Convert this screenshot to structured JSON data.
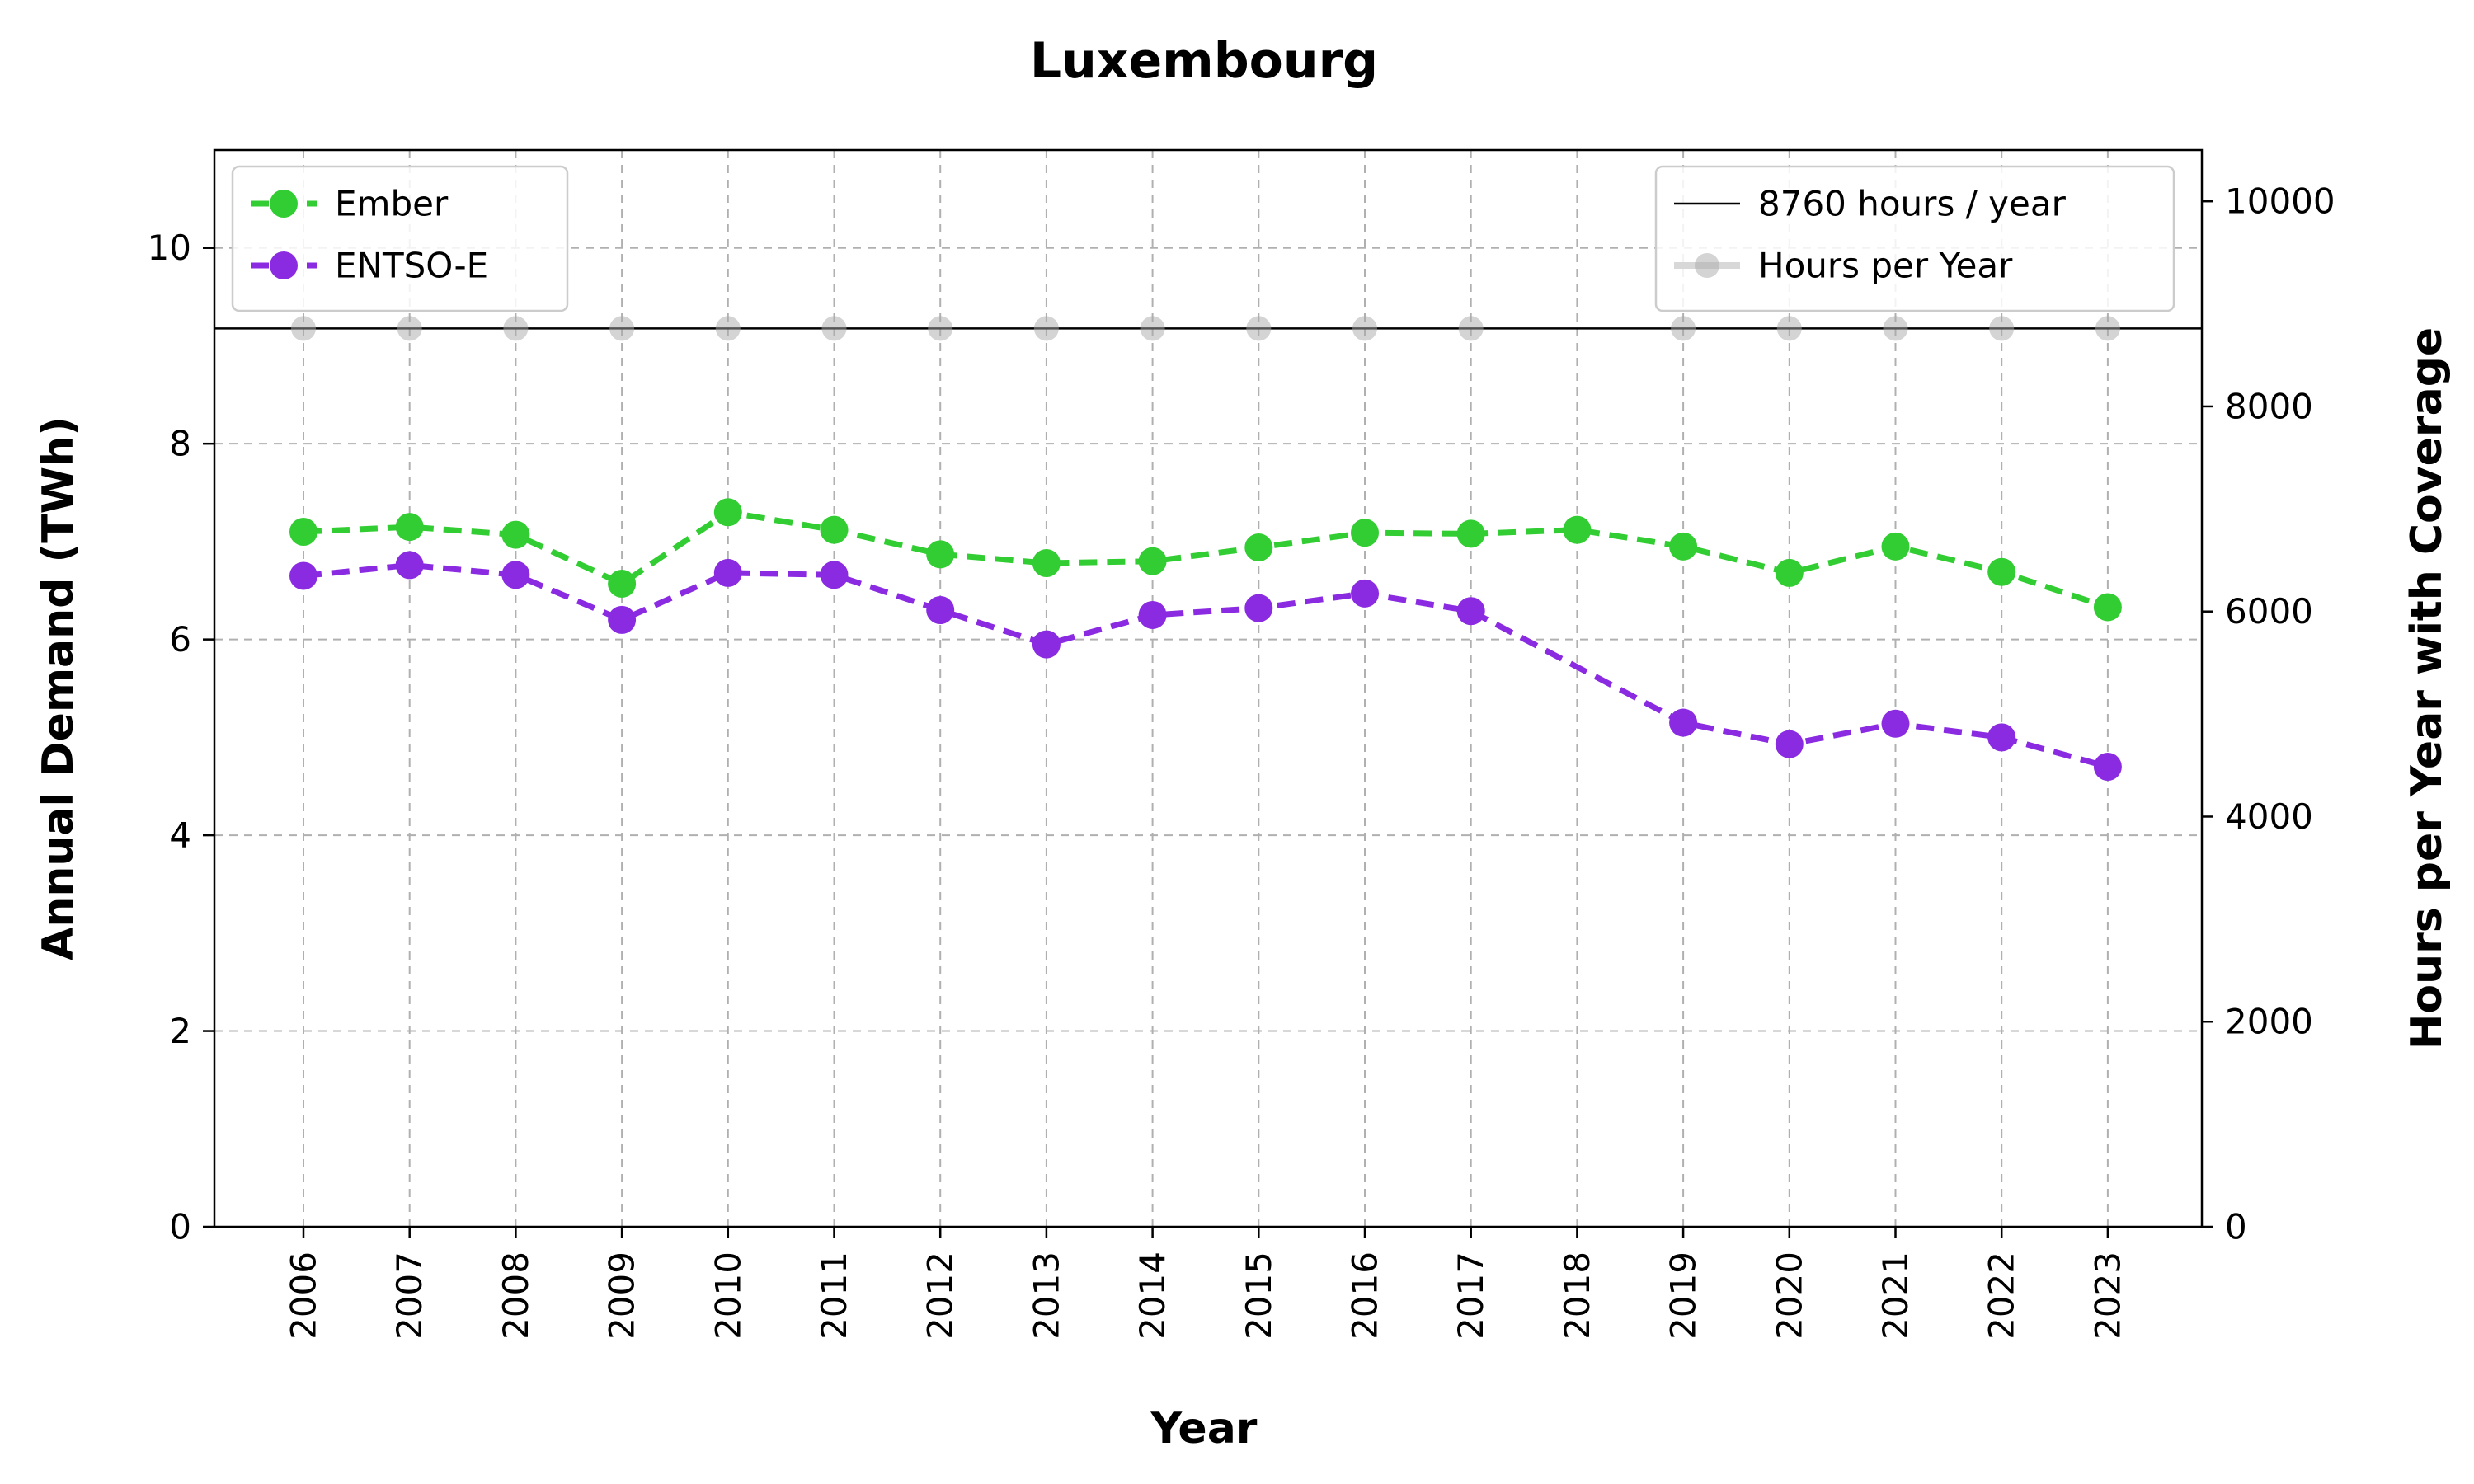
{
  "chart_data": {
    "type": "line",
    "title": "Luxembourg",
    "xlabel": "Year",
    "ylabel_left": "Annual Demand (TWh)",
    "ylabel_right": "Hours per Year with Coverage",
    "categories": [
      "2006",
      "2007",
      "2008",
      "2009",
      "2010",
      "2011",
      "2012",
      "2013",
      "2014",
      "2015",
      "2016",
      "2017",
      "2018",
      "2019",
      "2020",
      "2021",
      "2022",
      "2023"
    ],
    "ylim_left": [
      0,
      11
    ],
    "yticks_left": [
      0,
      2,
      4,
      6,
      8,
      10
    ],
    "ylim_right": [
      0,
      10500
    ],
    "yticks_right": [
      0,
      2000,
      4000,
      6000,
      8000,
      10000
    ],
    "grid": true,
    "series": [
      {
        "name": "Ember",
        "axis": "left",
        "color": "#32cd32",
        "style": "dashed",
        "marker": "circle",
        "values": [
          7.1,
          7.15,
          7.07,
          6.57,
          7.3,
          7.12,
          6.87,
          6.78,
          6.8,
          6.94,
          7.09,
          7.08,
          7.12,
          6.95,
          6.68,
          6.95,
          6.69,
          6.33
        ]
      },
      {
        "name": "ENTSO-E",
        "axis": "left",
        "color": "#8a2be2",
        "style": "dashed",
        "marker": "circle",
        "values": [
          6.65,
          6.76,
          6.66,
          6.2,
          6.68,
          6.66,
          6.3,
          5.95,
          6.25,
          6.32,
          6.47,
          6.29,
          null,
          5.15,
          4.93,
          5.14,
          5.0,
          4.7
        ]
      },
      {
        "name": "Hours per Year",
        "axis": "right",
        "color": "#a9a9a9",
        "style": "dashed",
        "marker": "circle",
        "values": [
          8760,
          8760,
          8760,
          8760,
          8760,
          8760,
          8760,
          8760,
          8760,
          8760,
          8760,
          8760,
          null,
          8760,
          8760,
          8760,
          8760,
          8760
        ]
      }
    ],
    "reference_line": {
      "name": "8760 hours / year",
      "axis": "right",
      "value": 8760,
      "color": "#000000"
    },
    "legends": {
      "left": {
        "placement": "top-left",
        "entries": [
          "Ember",
          "ENTSO-E"
        ]
      },
      "right": {
        "placement": "top-right",
        "entries": [
          "8760 hours / year",
          "Hours per Year"
        ]
      }
    }
  }
}
